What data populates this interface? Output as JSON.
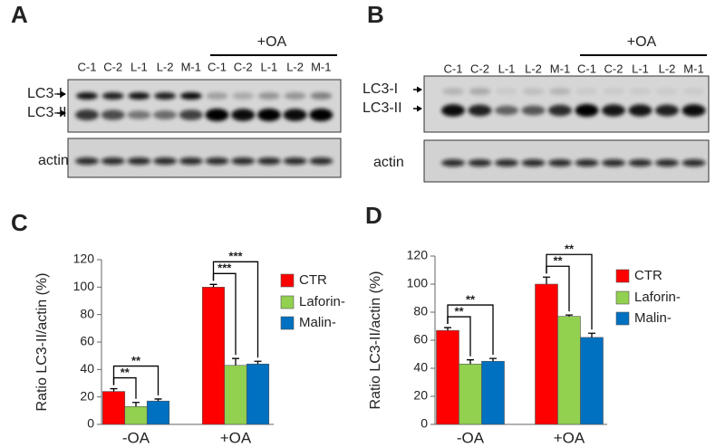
{
  "blots": [
    {
      "panel": "A",
      "treatment": "+OA",
      "lanes": [
        "C-1",
        "C-2",
        "L-1",
        "L-2",
        "M-1",
        "C-1",
        "C-2",
        "L-1",
        "L-2",
        "M-1"
      ],
      "bands": [
        "LC3-I",
        "LC3-II"
      ],
      "loading": "actin"
    },
    {
      "panel": "B",
      "treatment": "+OA",
      "lanes": [
        "C-1",
        "C-2",
        "L-1",
        "L-2",
        "M-1",
        "C-1",
        "C-2",
        "L-1",
        "L-2",
        "M-1"
      ],
      "bands": [
        "LC3-I",
        "LC3-II"
      ],
      "loading": "actin"
    }
  ],
  "chart_data": [
    {
      "type": "bar",
      "panel": "C",
      "y_label": "Ratio LC3-II/actin (%)",
      "categories": [
        "-OA",
        "+OA"
      ],
      "series": [
        {
          "name": "CTR",
          "color": "#ff0000",
          "values": [
            24,
            100
          ],
          "errors": [
            2,
            2
          ]
        },
        {
          "name": "Laforin-",
          "color": "#92d050",
          "values": [
            13,
            43
          ],
          "errors": [
            3,
            5
          ]
        },
        {
          "name": "Malin-",
          "color": "#0070c0",
          "values": [
            17,
            44
          ],
          "errors": [
            1.5,
            2
          ]
        }
      ],
      "annotations": [
        "**",
        "**",
        "***",
        "***"
      ],
      "ylim": [
        0,
        120
      ],
      "yticks": [
        0,
        20,
        40,
        60,
        80,
        100,
        120
      ]
    },
    {
      "type": "bar",
      "panel": "D",
      "y_label": "Ratio LC3-II/actin (%)",
      "categories": [
        "-OA",
        "+OA"
      ],
      "series": [
        {
          "name": "CTR",
          "color": "#ff0000",
          "values": [
            67,
            100
          ],
          "errors": [
            2,
            5
          ]
        },
        {
          "name": "Laforin-",
          "color": "#92d050",
          "values": [
            43,
            77
          ],
          "errors": [
            3,
            1
          ]
        },
        {
          "name": "Malin-",
          "color": "#0070c0",
          "values": [
            45,
            62
          ],
          "errors": [
            2,
            3
          ]
        }
      ],
      "annotations": [
        "**",
        "**",
        "**",
        "**"
      ],
      "ylim": [
        0,
        120
      ],
      "yticks": [
        0,
        20,
        40,
        60,
        80,
        100,
        120
      ]
    }
  ]
}
